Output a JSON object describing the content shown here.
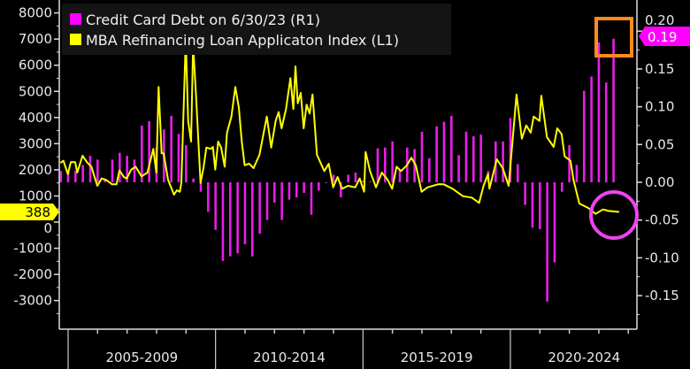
{
  "chart_data": {
    "type": "bar+line",
    "title": "",
    "legend": {
      "placement": "top-left",
      "entries": [
        {
          "label": "Credit Card Debt on 6/30/23 (R1)",
          "color": "#ff00ff"
        },
        {
          "label": "MBA Refinancing Loan Applicaton Index (L1)",
          "color": "#ffff00"
        }
      ]
    },
    "x_range": [
      2004.7,
      2024.3
    ],
    "x_period_labels": [
      "2005-2009",
      "2010-2014",
      "2015-2019",
      "2020-2024"
    ],
    "left_axis": {
      "ylim": [
        -4000,
        8200
      ],
      "ticks": [
        8000,
        7000,
        6000,
        5000,
        4000,
        3000,
        2000,
        1000,
        0,
        -1000,
        -2000,
        -3000
      ],
      "tick_labels": [
        "8000",
        "7000",
        "6000",
        "5000",
        "4000",
        "3000",
        "2000",
        "1000",
        "0",
        "-1000",
        "-2000",
        "-3000"
      ]
    },
    "right_axis": {
      "ylim": [
        -0.19,
        0.21
      ],
      "ticks": [
        0.2,
        0.15,
        0.1,
        0.05,
        0.0,
        -0.05,
        -0.1,
        -0.15
      ],
      "tick_labels": [
        "0.20",
        "0.15",
        "0.10",
        "0.05",
        "0.00",
        "-0.05",
        "-0.10",
        "-0.15"
      ]
    },
    "series": [
      {
        "name": "Credit Card Debt on 6/30/23 (R1)",
        "type": "bar",
        "axis": "right",
        "color": "#e81ee8",
        "frequency": "quarterly",
        "start": 2004.75,
        "end": 2023.5,
        "values": [
          0.015,
          0.015,
          0.015,
          0.023,
          0.035,
          0.03,
          0.005,
          0.03,
          0.039,
          0.035,
          0.03,
          0.075,
          0.081,
          0.046,
          0.07,
          0.088,
          0.064,
          0.049,
          0.005,
          -0.0125,
          -0.039,
          -0.063,
          -0.104,
          -0.098,
          -0.094,
          -0.082,
          -0.098,
          -0.068,
          -0.05,
          -0.027,
          -0.05,
          -0.023,
          -0.02,
          -0.014,
          -0.043,
          -0.011,
          -0.001,
          0.01,
          -0.02,
          0.01,
          0.013,
          0.002,
          0.001,
          0.045,
          0.046,
          0.054,
          0.017,
          0.046,
          0.044,
          0.067,
          0.032,
          0.074,
          0.08,
          0.088,
          0.036,
          0.067,
          0.061,
          0.063,
          0.015,
          0.054,
          0.054,
          0.085,
          0.024,
          -0.03,
          -0.06,
          -0.062,
          -0.158,
          -0.106,
          -0.0125,
          0.049,
          0.023,
          0.121,
          0.14,
          0.185,
          0.132,
          0.19
        ],
        "last_value_label": "0.19"
      },
      {
        "name": "MBA Refinancing Loan Applicaton Index (L1)",
        "type": "line",
        "axis": "left",
        "color": "#ffff00",
        "points": [
          [
            2004.74,
            2267
          ],
          [
            2004.84,
            2346
          ],
          [
            2004.99,
            1839
          ],
          [
            2005.09,
            2290
          ],
          [
            2005.24,
            2290
          ],
          [
            2005.31,
            1895
          ],
          [
            2005.49,
            2538
          ],
          [
            2005.64,
            2290
          ],
          [
            2005.79,
            2120
          ],
          [
            2005.99,
            1387
          ],
          [
            2006.14,
            1670
          ],
          [
            2006.29,
            1613
          ],
          [
            2006.49,
            1444
          ],
          [
            2006.64,
            1444
          ],
          [
            2006.74,
            1974
          ],
          [
            2006.89,
            1726
          ],
          [
            2006.99,
            1670
          ],
          [
            2007.14,
            2008
          ],
          [
            2007.29,
            2120
          ],
          [
            2007.49,
            1748
          ],
          [
            2007.69,
            1895
          ],
          [
            2007.89,
            2797
          ],
          [
            2007.99,
            1895
          ],
          [
            2008.07,
            5166
          ],
          [
            2008.17,
            2628
          ],
          [
            2008.24,
            2628
          ],
          [
            2008.39,
            1613
          ],
          [
            2008.59,
            1049
          ],
          [
            2008.69,
            1218
          ],
          [
            2008.79,
            1162
          ],
          [
            2008.84,
            1500
          ],
          [
            2008.99,
            7000
          ],
          [
            2009.07,
            3869
          ],
          [
            2009.17,
            3080
          ],
          [
            2009.24,
            6800
          ],
          [
            2009.34,
            4772
          ],
          [
            2009.49,
            1500
          ],
          [
            2009.59,
            2064
          ],
          [
            2009.69,
            2854
          ],
          [
            2009.84,
            2797
          ],
          [
            2009.91,
            2876
          ],
          [
            2009.99,
            2008
          ],
          [
            2010.09,
            3080
          ],
          [
            2010.19,
            2854
          ],
          [
            2010.31,
            2120
          ],
          [
            2010.39,
            3418
          ],
          [
            2010.54,
            4038
          ],
          [
            2010.67,
            5166
          ],
          [
            2010.79,
            4377
          ],
          [
            2010.89,
            3080
          ],
          [
            2010.99,
            2177
          ],
          [
            2011.14,
            2233
          ],
          [
            2011.29,
            2064
          ],
          [
            2011.49,
            2572
          ],
          [
            2011.74,
            4038
          ],
          [
            2011.89,
            2854
          ],
          [
            2012.04,
            3869
          ],
          [
            2012.14,
            4208
          ],
          [
            2012.24,
            3587
          ],
          [
            2012.39,
            4321
          ],
          [
            2012.54,
            5505
          ],
          [
            2012.64,
            4321
          ],
          [
            2012.71,
            5956
          ],
          [
            2012.79,
            4546
          ],
          [
            2012.89,
            4941
          ],
          [
            2012.99,
            3587
          ],
          [
            2013.09,
            4490
          ],
          [
            2013.19,
            4151
          ],
          [
            2013.29,
            4884
          ],
          [
            2013.44,
            2572
          ],
          [
            2013.69,
            1951
          ],
          [
            2013.84,
            2233
          ],
          [
            2013.99,
            1331
          ],
          [
            2014.14,
            1726
          ],
          [
            2014.29,
            1275
          ],
          [
            2014.49,
            1387
          ],
          [
            2014.74,
            1331
          ],
          [
            2014.89,
            1670
          ],
          [
            2015.04,
            1162
          ],
          [
            2015.09,
            2685
          ],
          [
            2015.24,
            1951
          ],
          [
            2015.44,
            1331
          ],
          [
            2015.64,
            1895
          ],
          [
            2015.84,
            1613
          ],
          [
            2015.99,
            1275
          ],
          [
            2016.14,
            2120
          ],
          [
            2016.29,
            1951
          ],
          [
            2016.49,
            2177
          ],
          [
            2016.64,
            2459
          ],
          [
            2016.79,
            2177
          ],
          [
            2016.99,
            1162
          ],
          [
            2017.19,
            1331
          ],
          [
            2017.54,
            1444
          ],
          [
            2017.74,
            1444
          ],
          [
            2018.04,
            1275
          ],
          [
            2018.39,
            993
          ],
          [
            2018.69,
            936
          ],
          [
            2018.94,
            733
          ],
          [
            2019.09,
            1387
          ],
          [
            2019.24,
            1839
          ],
          [
            2019.29,
            1275
          ],
          [
            2019.54,
            2403
          ],
          [
            2019.74,
            2064
          ],
          [
            2019.94,
            1387
          ],
          [
            2020.09,
            3305
          ],
          [
            2020.21,
            4884
          ],
          [
            2020.39,
            3192
          ],
          [
            2020.54,
            3700
          ],
          [
            2020.69,
            3418
          ],
          [
            2020.79,
            4038
          ],
          [
            2020.99,
            3869
          ],
          [
            2021.05,
            4828
          ],
          [
            2021.24,
            3249
          ],
          [
            2021.47,
            2876
          ],
          [
            2021.59,
            3587
          ],
          [
            2021.74,
            3362
          ],
          [
            2021.84,
            2516
          ],
          [
            2022.04,
            2346
          ],
          [
            2022.14,
            1613
          ],
          [
            2022.34,
            711
          ],
          [
            2022.64,
            541
          ],
          [
            2022.89,
            316
          ],
          [
            2023.14,
            485
          ],
          [
            2023.34,
            428
          ],
          [
            2023.69,
            388
          ]
        ],
        "last_value_label": "388"
      }
    ],
    "annotations": [
      {
        "type": "rectangle",
        "color": "#ff8a1e",
        "around": "latest credit card debt bar (0.19)"
      },
      {
        "type": "circle",
        "color": "#ee44ee",
        "around": "latest MBA refinancing index values"
      }
    ]
  }
}
